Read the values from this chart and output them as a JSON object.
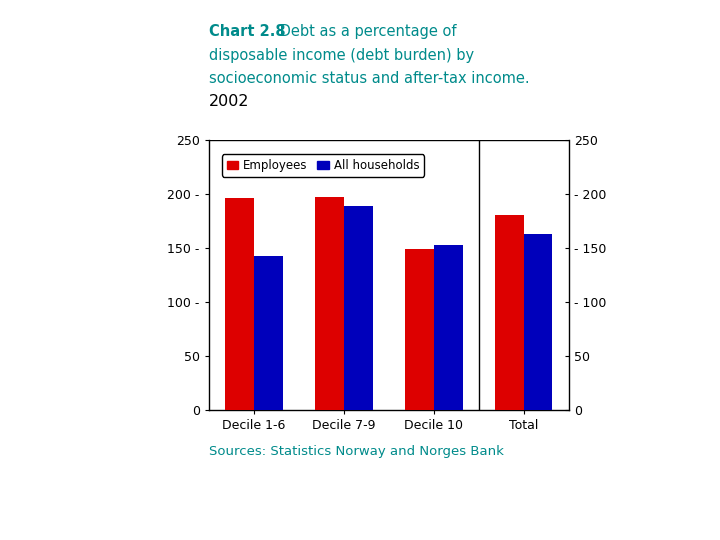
{
  "title_bold": "Chart 2.8",
  "title_rest_line1": " Debt as a percentage of",
  "title_line2": "disposable income (debt burden) by",
  "title_line3": "socioeconomic status and after-tax income.",
  "title_line4": "2002",
  "title_color": "#008B8B",
  "title_fontsize": 10.5,
  "categories": [
    "Decile 1-6",
    "Decile 7-9",
    "Decile 10",
    "Total"
  ],
  "employees": [
    197,
    198,
    149,
    181
  ],
  "all_households": [
    143,
    189,
    153,
    163
  ],
  "bar_color_employees": "#dd0000",
  "bar_color_households": "#0000bb",
  "ylim": [
    0,
    250
  ],
  "yticks": [
    0,
    50,
    100,
    150,
    200,
    250
  ],
  "legend_employees": "Employees",
  "legend_households": "All households",
  "source_text": "Sources: Statistics Norway and Norges Bank",
  "source_color": "#008B8B",
  "source_fontsize": 9.5,
  "background_color": "#ffffff",
  "bar_width": 0.32
}
